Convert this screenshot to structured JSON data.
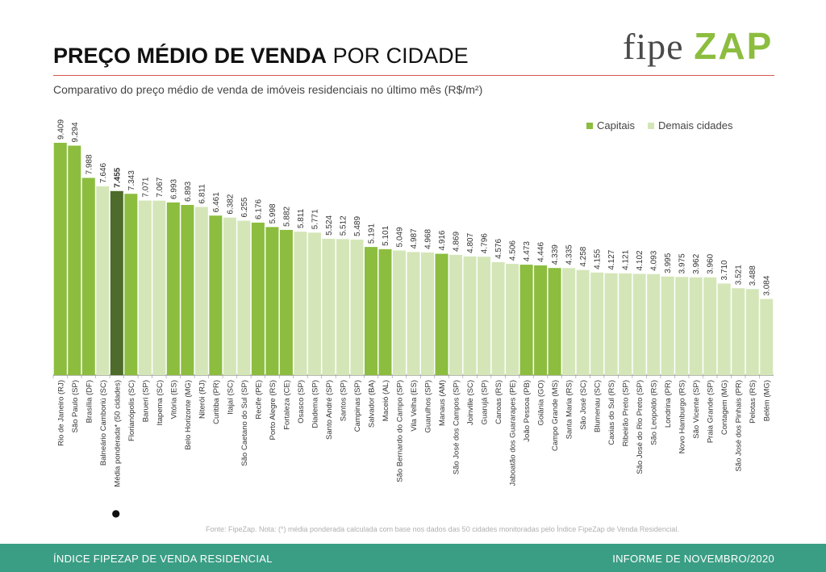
{
  "header": {
    "title_bold": "PREÇO MÉDIO DE VENDA",
    "title_regular": "POR CIDADE",
    "subtitle": "Comparativo do preço médio de venda de imóveis residenciais no último mês (R$/m²)"
  },
  "logo": {
    "part1": "fipe",
    "part2": "ZAP"
  },
  "legend": {
    "capitals": "Capitais",
    "others": "Demais cidades"
  },
  "colors": {
    "capital": "#8cbd3f",
    "other": "#d4e6b8",
    "weighted": "#4d6b2a",
    "accent_line": "#d9534f",
    "footer": "#3a9e85"
  },
  "chart_data": {
    "type": "bar",
    "ylim": [
      0,
      9.409
    ],
    "categories": [
      "Rio de Janeiro (RJ)",
      "São Paulo (SP)",
      "Brasília (DF)",
      "Balneário Camboriú (SC)",
      "Média ponderada* (50 cidades)",
      "Florianópolis (SC)",
      "Barueri (SP)",
      "Itapema (SC)",
      "Vitória (ES)",
      "Belo Horizonte (MG)",
      "Niterói (RJ)",
      "Curitiba (PR)",
      "Itajaí (SC)",
      "São Caetano do Sul (SP)",
      "Recife (PE)",
      "Porto Alegre (RS)",
      "Fortaleza (CE)",
      "Osasco (SP)",
      "Diadema (SP)",
      "Santo André (SP)",
      "Santos (SP)",
      "Campinas (SP)",
      "Salvador (BA)",
      "Maceió (AL)",
      "São Bernardo do Campo (SP)",
      "Vila Velha (ES)",
      "Guarulhos (SP)",
      "Manaus (AM)",
      "São José dos Campos (SP)",
      "Joinville (SC)",
      "Guarujá (SP)",
      "Canoas (RS)",
      "Jaboatão dos Guararapes (PE)",
      "João Pessoa (PB)",
      "Goiânia (GO)",
      "Campo Grande (MS)",
      "Santa Maria (RS)",
      "São José (SC)",
      "Blumenau (SC)",
      "Caxias do Sul (RS)",
      "Ribeirão Preto (SP)",
      "São José do Rio Preto (SP)",
      "São Leopoldo (RS)",
      "Londrina (PR)",
      "Novo Hamburgo (RS)",
      "São Vicente (SP)",
      "Praia Grande (SP)",
      "Contagem (MG)",
      "São José dos Pinhais (PR)",
      "Pelotas (RS)",
      "Belém (MG)"
    ],
    "labels": [
      "9.409",
      "9.294",
      "7.988",
      "7.646",
      "7.455",
      "7.343",
      "7.071",
      "7.067",
      "6.993",
      "6.893",
      "6.811",
      "6.461",
      "6.382",
      "6.255",
      "6.176",
      "5.998",
      "5.882",
      "5.811",
      "5.771",
      "5.524",
      "5.512",
      "5.489",
      "5.191",
      "5.101",
      "5.049",
      "4.987",
      "4.968",
      "4.916",
      "4.869",
      "4.807",
      "4.796",
      "4.576",
      "4.506",
      "4.473",
      "4.446",
      "4.339",
      "4.335",
      "4.258",
      "4.155",
      "4.127",
      "4.121",
      "4.102",
      "4.093",
      "3.995",
      "3.975",
      "3.962",
      "3.960",
      "3.710",
      "3.521",
      "3.488",
      "3.084"
    ],
    "values": [
      9.409,
      9.294,
      7.988,
      7.646,
      7.455,
      7.343,
      7.071,
      7.067,
      6.993,
      6.893,
      6.811,
      6.461,
      6.382,
      6.255,
      6.176,
      5.998,
      5.882,
      5.811,
      5.771,
      5.524,
      5.512,
      5.489,
      5.191,
      5.101,
      5.049,
      4.987,
      4.968,
      4.916,
      4.869,
      4.807,
      4.796,
      4.576,
      4.506,
      4.473,
      4.446,
      4.339,
      4.335,
      4.258,
      4.155,
      4.127,
      4.121,
      4.102,
      4.093,
      3.995,
      3.975,
      3.962,
      3.96,
      3.71,
      3.521,
      3.488,
      3.084
    ],
    "group": [
      "capital",
      "capital",
      "capital",
      "other",
      "weighted",
      "capital",
      "other",
      "other",
      "capital",
      "capital",
      "other",
      "capital",
      "other",
      "other",
      "capital",
      "capital",
      "capital",
      "other",
      "other",
      "other",
      "other",
      "other",
      "capital",
      "capital",
      "other",
      "other",
      "other",
      "capital",
      "other",
      "other",
      "other",
      "other",
      "other",
      "capital",
      "capital",
      "capital",
      "other",
      "other",
      "other",
      "other",
      "other",
      "other",
      "other",
      "other",
      "other",
      "other",
      "other",
      "other",
      "other",
      "other",
      "other"
    ],
    "highlight_marker": "●",
    "legend_position": "top-right"
  },
  "source_note": "Fonte: FipeZap. Nota: (*) média ponderada calculada com base nos dados das 50 cidades monitoradas pelo Índice FipeZap de Venda Residencial.",
  "footer": {
    "left": "ÍNDICE FIPEZAP DE VENDA RESIDENCIAL",
    "right": "INFORME DE NOVEMBRO/2020"
  }
}
